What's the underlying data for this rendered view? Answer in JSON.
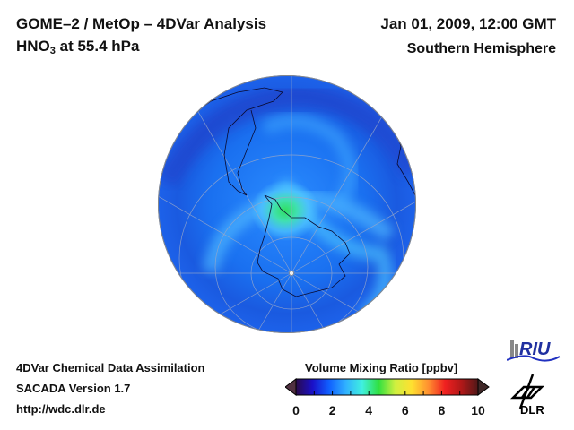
{
  "header": {
    "title_line1": "GOME–2 / MetOp – 4DVar Analysis",
    "species": "HNO",
    "species_sub": "3",
    "level_text": " at 55.4 hPa",
    "datetime": "Jan 01, 2009, 12:00 GMT",
    "region": "Southern Hemisphere"
  },
  "footer": {
    "line1": "4DVar Chemical Data Assimilation",
    "line2": "SACADA Version 1.7",
    "line3": "http://wdc.dlr.de"
  },
  "colorbar": {
    "title": "Volume Mixing Ratio [ppbv]",
    "min": 0,
    "max": 10,
    "ticks": [
      "0",
      "2",
      "4",
      "6",
      "8",
      "10"
    ],
    "colors": [
      "#2a0a4a",
      "#1a10c8",
      "#1060ff",
      "#30b0ff",
      "#40f0e0",
      "#30e040",
      "#d0f040",
      "#ffe030",
      "#ff9030",
      "#f02020",
      "#b01818",
      "#501818"
    ]
  },
  "map": {
    "projection": "orthographic, south polar",
    "field": "HNO3 volume mixing ratio",
    "max_feature": "green maximum near Antarctic Peninsula (~5 ppbv)",
    "background_level_ppbv": 2
  },
  "logos": {
    "riu": "RIU",
    "dlr": "DLR"
  }
}
